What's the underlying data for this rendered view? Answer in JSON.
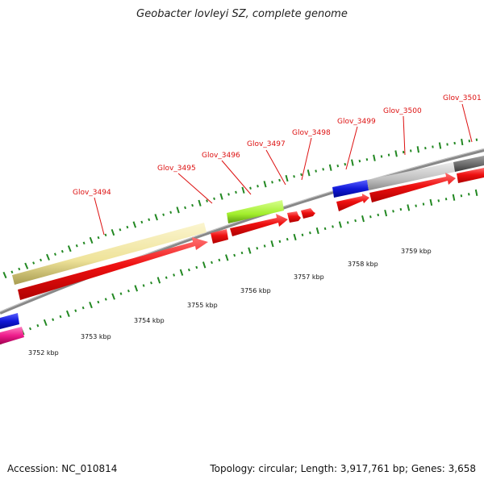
{
  "title": "Geobacter lovleyi SZ, complete genome",
  "footer": {
    "accession": "Accession: NC_010814",
    "summary": "Topology: circular; Length: 3,917,761 bp; Genes: 3,658"
  },
  "colors": {
    "forward_cds": "#e81010",
    "reverse_cds_red": "#e81010",
    "yellow_gene": "#f2e8a0",
    "green_gene": "#a8f030",
    "blue_gene": "#1018d8",
    "gray_gene": "#c4c4c4",
    "dark_gray_gene": "#6a6a6a",
    "magenta_gene": "#ee1c8c",
    "gene_label": "#dd1111",
    "tick": "#228822",
    "backbone": "#888888"
  },
  "gene_labels": [
    "Glov_3494",
    "Glov_3495",
    "Glov_3496",
    "Glov_3497",
    "Glov_3498",
    "Glov_3499",
    "Glov_3500",
    "Glov_3501"
  ],
  "kbp_labels": [
    "3752 kbp",
    "3753 kbp",
    "3754 kbp",
    "3755 kbp",
    "3756 kbp",
    "3757 kbp",
    "3758 kbp",
    "3759 kbp"
  ]
}
